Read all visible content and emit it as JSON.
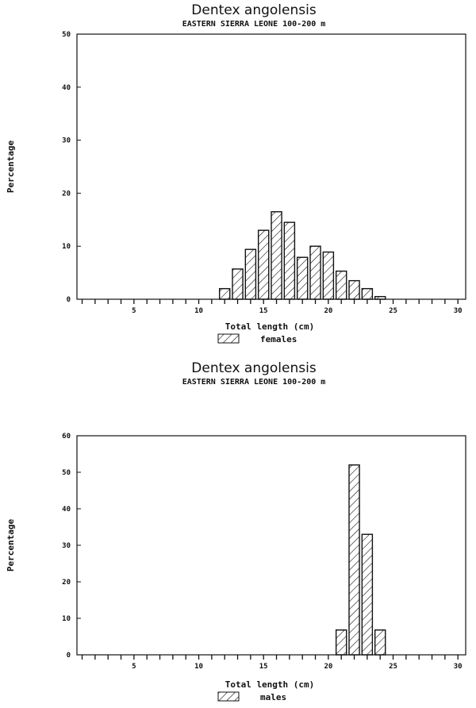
{
  "chart_data": [
    {
      "type": "bar",
      "title": "Dentex angolensis",
      "subtitle": "EASTERN SIERRA LEONE 100-200 m",
      "xlabel": "Total length (cm)",
      "ylabel": "Percentage",
      "legend": "females",
      "xlim": [
        0.6,
        30.6
      ],
      "ylim": [
        0,
        50
      ],
      "xticks": [
        5,
        10,
        15,
        20,
        25,
        30
      ],
      "yticks": [
        0,
        10,
        20,
        30,
        40,
        50
      ],
      "x": [
        12,
        13,
        14,
        15,
        16,
        17,
        18,
        19,
        20,
        21,
        22,
        23,
        24
      ],
      "values": [
        2,
        5.7,
        9.4,
        13,
        16.5,
        14.5,
        7.9,
        10,
        8.9,
        5.3,
        3.5,
        2,
        0.5
      ],
      "fill": "hatched"
    },
    {
      "type": "bar",
      "title": "Dentex angolensis",
      "subtitle": "EASTERN SIERRA LEONE 100-200 m",
      "xlabel": "Total length (cm)",
      "ylabel": "Percentage",
      "legend": "males",
      "xlim": [
        0.6,
        30.6
      ],
      "ylim": [
        0,
        60
      ],
      "xticks": [
        5,
        10,
        15,
        20,
        25,
        30
      ],
      "yticks": [
        0,
        10,
        20,
        30,
        40,
        50,
        60
      ],
      "x": [
        21,
        22,
        23,
        24
      ],
      "values": [
        6.8,
        52,
        33,
        6.8
      ],
      "fill": "hatched"
    }
  ]
}
